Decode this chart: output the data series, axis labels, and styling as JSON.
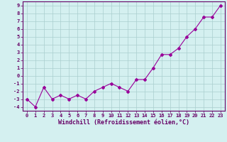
{
  "x": [
    0,
    1,
    2,
    3,
    4,
    5,
    6,
    7,
    8,
    9,
    10,
    11,
    12,
    13,
    14,
    15,
    16,
    17,
    18,
    19,
    20,
    21,
    22,
    23
  ],
  "y": [
    -3,
    -4,
    -1.5,
    -3,
    -2.5,
    -3,
    -2.5,
    -3,
    -2,
    -1.5,
    -1,
    -1.5,
    -2,
    -0.5,
    -0.5,
    1,
    2.7,
    2.7,
    3.5,
    5,
    6,
    7.5,
    7.5,
    9
  ],
  "line_color": "#990099",
  "marker": "D",
  "markersize": 2.0,
  "linewidth": 0.8,
  "xlim": [
    -0.5,
    23.5
  ],
  "ylim": [
    -4.5,
    9.5
  ],
  "yticks": [
    -4,
    -3,
    -2,
    -1,
    0,
    1,
    2,
    3,
    4,
    5,
    6,
    7,
    8,
    9
  ],
  "xticks": [
    0,
    1,
    2,
    3,
    4,
    5,
    6,
    7,
    8,
    9,
    10,
    11,
    12,
    13,
    14,
    15,
    16,
    17,
    18,
    19,
    20,
    21,
    22,
    23
  ],
  "xlabel": "Windchill (Refroidissement éolien,°C)",
  "bg_color": "#d4f0f0",
  "grid_color": "#aacece",
  "tick_color": "#660066",
  "label_color": "#660066",
  "font_size_ticks": 5.0,
  "font_size_xlabel": 6.0
}
